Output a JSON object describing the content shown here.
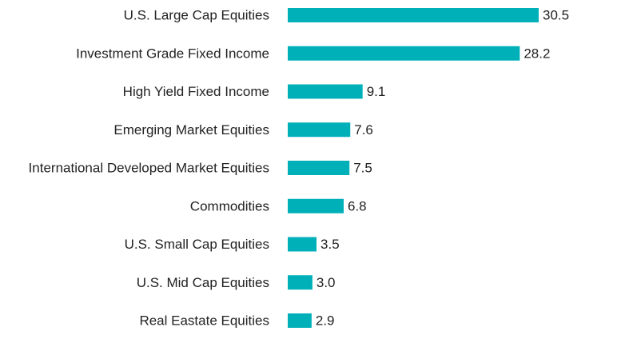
{
  "chart_data": {
    "type": "bar",
    "orientation": "horizontal",
    "categories": [
      "U.S. Large Cap Equities",
      "Investment Grade Fixed Income",
      "High Yield Fixed Income",
      "Emerging Market Equities",
      "International Developed Market Equities",
      "Commodities",
      "U.S. Small Cap Equities",
      "U.S. Mid Cap Equities",
      "Real Eastate Equities"
    ],
    "values": [
      30.5,
      28.2,
      9.1,
      7.6,
      7.5,
      6.8,
      3.5,
      3.0,
      2.9
    ],
    "value_labels": [
      "30.5",
      "28.2",
      "9.1",
      "7.6",
      "7.5",
      "6.8",
      "3.5",
      "3.0",
      "2.9"
    ],
    "title": "",
    "xlabel": "",
    "ylabel": "",
    "xlim": [
      0,
      30.5
    ],
    "grid": false,
    "legend": "none",
    "bar_color": "#00b0b9"
  }
}
